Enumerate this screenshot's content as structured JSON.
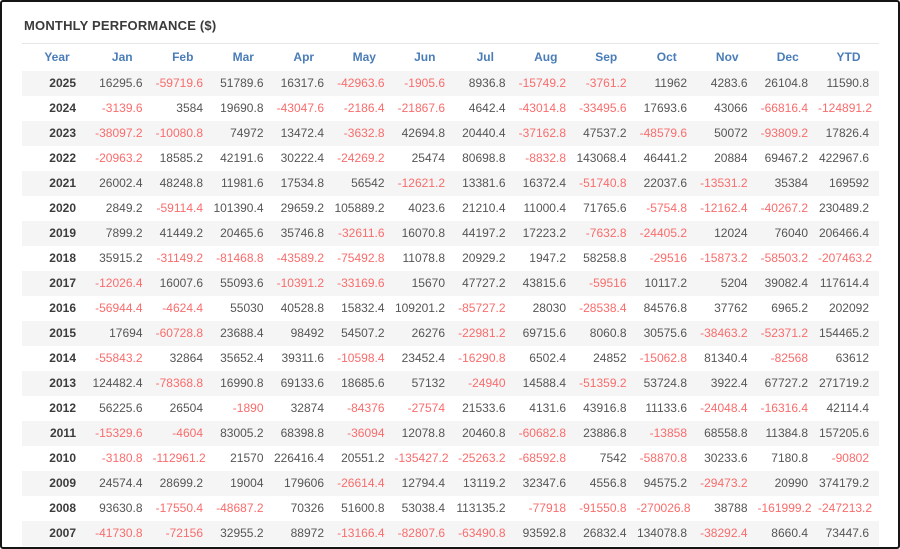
{
  "title": "MONTHLY PERFORMANCE ($)",
  "colors": {
    "title": "#3b3b3b",
    "header_text": "#4a7db8",
    "positive_text": "#555555",
    "negative_text": "#f96c6c",
    "year_text": "#3c3c3c",
    "row_stripe": "#f5f5f5",
    "divider": "#e6e6e6",
    "frame_border": "#151515"
  },
  "table": {
    "columns": [
      "Year",
      "Jan",
      "Feb",
      "Mar",
      "Apr",
      "May",
      "Jun",
      "Jul",
      "Aug",
      "Sep",
      "Oct",
      "Nov",
      "Dec",
      "YTD"
    ],
    "rows": [
      {
        "year": "2025",
        "values": [
          "16295.6",
          "-59719.6",
          "51789.6",
          "16317.6",
          "-42963.6",
          "-1905.6",
          "8936.8",
          "-15749.2",
          "-3761.2",
          "11962",
          "4283.6",
          "26104.8",
          "11590.8"
        ]
      },
      {
        "year": "2024",
        "values": [
          "-3139.6",
          "3584",
          "19690.8",
          "-43047.6",
          "-2186.4",
          "-21867.6",
          "4642.4",
          "-43014.8",
          "-33495.6",
          "17693.6",
          "43066",
          "-66816.4",
          "-124891.2"
        ]
      },
      {
        "year": "2023",
        "values": [
          "-38097.2",
          "-10080.8",
          "74972",
          "13472.4",
          "-3632.8",
          "42694.8",
          "20440.4",
          "-37162.8",
          "47537.2",
          "-48579.6",
          "50072",
          "-93809.2",
          "17826.4"
        ]
      },
      {
        "year": "2022",
        "values": [
          "-20963.2",
          "18585.2",
          "42191.6",
          "30222.4",
          "-24269.2",
          "25474",
          "80698.8",
          "-8832.8",
          "143068.4",
          "46441.2",
          "20884",
          "69467.2",
          "422967.6"
        ]
      },
      {
        "year": "2021",
        "values": [
          "26002.4",
          "48248.8",
          "11981.6",
          "17534.8",
          "56542",
          "-12621.2",
          "13381.6",
          "16372.4",
          "-51740.8",
          "22037.6",
          "-13531.2",
          "35384",
          "169592"
        ]
      },
      {
        "year": "2020",
        "values": [
          "2849.2",
          "-59114.4",
          "101390.4",
          "29659.2",
          "105889.2",
          "4023.6",
          "21210.4",
          "11000.4",
          "71765.6",
          "-5754.8",
          "-12162.4",
          "-40267.2",
          "230489.2"
        ]
      },
      {
        "year": "2019",
        "values": [
          "7899.2",
          "41449.2",
          "20465.6",
          "35746.8",
          "-32611.6",
          "16070.8",
          "44197.2",
          "17223.2",
          "-7632.8",
          "-24405.2",
          "12024",
          "76040",
          "206466.4"
        ]
      },
      {
        "year": "2018",
        "values": [
          "35915.2",
          "-31149.2",
          "-81468.8",
          "-43589.2",
          "-75492.8",
          "11078.8",
          "20929.2",
          "1947.2",
          "58258.8",
          "-29516",
          "-15873.2",
          "-58503.2",
          "-207463.2"
        ]
      },
      {
        "year": "2017",
        "values": [
          "-12026.4",
          "16007.6",
          "55093.6",
          "-10391.2",
          "-33169.6",
          "15670",
          "47727.2",
          "43815.6",
          "-59516",
          "10117.2",
          "5204",
          "39082.4",
          "117614.4"
        ]
      },
      {
        "year": "2016",
        "values": [
          "-56944.4",
          "-4624.4",
          "55030",
          "40528.8",
          "15832.4",
          "109201.2",
          "-85727.2",
          "28030",
          "-28538.4",
          "84576.8",
          "37762",
          "6965.2",
          "202092"
        ]
      },
      {
        "year": "2015",
        "values": [
          "17694",
          "-60728.8",
          "23688.4",
          "98492",
          "54507.2",
          "26276",
          "-22981.2",
          "69715.6",
          "8060.8",
          "30575.6",
          "-38463.2",
          "-52371.2",
          "154465.2"
        ]
      },
      {
        "year": "2014",
        "values": [
          "-55843.2",
          "32864",
          "35652.4",
          "39311.6",
          "-10598.4",
          "23452.4",
          "-16290.8",
          "6502.4",
          "24852",
          "-15062.8",
          "81340.4",
          "-82568",
          "63612"
        ]
      },
      {
        "year": "2013",
        "values": [
          "124482.4",
          "-78368.8",
          "16990.8",
          "69133.6",
          "18685.6",
          "57132",
          "-24940",
          "14588.4",
          "-51359.2",
          "53724.8",
          "3922.4",
          "67727.2",
          "271719.2"
        ]
      },
      {
        "year": "2012",
        "values": [
          "56225.6",
          "26504",
          "-1890",
          "32874",
          "-84376",
          "-27574",
          "21533.6",
          "4131.6",
          "43916.8",
          "11133.6",
          "-24048.4",
          "-16316.4",
          "42114.4"
        ]
      },
      {
        "year": "2011",
        "values": [
          "-15329.6",
          "-4604",
          "83005.2",
          "68398.8",
          "-36094",
          "12078.8",
          "20460.8",
          "-60682.8",
          "23886.8",
          "-13858",
          "68558.8",
          "11384.8",
          "157205.6"
        ]
      },
      {
        "year": "2010",
        "values": [
          "-3180.8",
          "-112961.2",
          "21570",
          "226416.4",
          "20551.2",
          "-135427.2",
          "-25263.2",
          "-68592.8",
          "7542",
          "-58870.8",
          "30233.6",
          "7180.8",
          "-90802"
        ]
      },
      {
        "year": "2009",
        "values": [
          "24574.4",
          "28699.2",
          "19004",
          "179606",
          "-26614.4",
          "12794.4",
          "13119.2",
          "32347.6",
          "4556.8",
          "94575.2",
          "-29473.2",
          "20990",
          "374179.2"
        ]
      },
      {
        "year": "2008",
        "values": [
          "93630.8",
          "-17550.4",
          "-48687.2",
          "70326",
          "51600.8",
          "53038.4",
          "113135.2",
          "-77918",
          "-91550.8",
          "-270026.8",
          "38788",
          "-161999.2",
          "-247213.2"
        ]
      },
      {
        "year": "2007",
        "values": [
          "-41730.8",
          "-72156",
          "32955.2",
          "88972",
          "-13166.4",
          "-82807.6",
          "-63490.8",
          "93592.8",
          "26832.4",
          "134078.8",
          "-38292.4",
          "8660.4",
          "73447.6"
        ]
      }
    ]
  }
}
